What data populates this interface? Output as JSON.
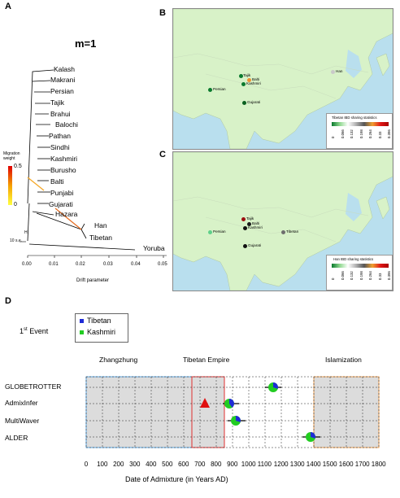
{
  "colors": {
    "tibetan": "#1f2bd6",
    "kashmiri": "#22cc22",
    "triangle": "#e01010",
    "panel_a_edge": "#f5a623",
    "map_land": "#d8f2c8",
    "map_sea": "#b9dfee",
    "box_blue": "#5aa7e6",
    "box_red": "#e03030",
    "box_orange": "#f0a050"
  },
  "panel_a": {
    "letter": "A",
    "title": "m=1",
    "leaves": [
      "Kalash",
      "Makrani",
      "Persian",
      "Tajik",
      "Brahui",
      "Balochi",
      "Pathan",
      "Sindhi",
      "Kashmiri",
      "Burusho",
      "Balti",
      "Punjabi",
      "Gujarati",
      "Hazara",
      "Han",
      "Tibetan",
      "Yoruba"
    ],
    "migration_label_1": "Migration",
    "migration_label_2": "weight",
    "migration_scale_top": "0.5",
    "migration_scale_bottom": "0",
    "se_label": "10 s.e.",
    "root_label": "H",
    "xticks": [
      "0.00",
      "0.01",
      "0.02",
      "0.03",
      "0.04",
      "0.05"
    ],
    "xlabel": "Drift parameter"
  },
  "panel_b": {
    "letter": "B",
    "labels": [
      "Tajik",
      "Balti",
      "Kashmiri",
      "Persian",
      "Gujarati",
      "Han"
    ],
    "legend_title": "Tibetan IBD sharing statistics",
    "legend_ticks": [
      "0",
      "0.066",
      "0.132",
      "0.198",
      "0.264",
      "0.33",
      "0.396"
    ]
  },
  "panel_c": {
    "letter": "C",
    "labels": [
      "Tajik",
      "Balti",
      "Kashmiri",
      "Persian",
      "Tibetan",
      "Gujarati"
    ],
    "legend_title": "Han IBD sharing statistics",
    "legend_ticks": [
      "0",
      "0.066",
      "0.132",
      "0.198",
      "0.264",
      "0.33",
      "0.396"
    ]
  },
  "panel_d": {
    "letter": "D",
    "event_prefix": "1",
    "event_sup": "st",
    "event_suffix": " Event",
    "legend": [
      "Tibetan",
      "Kashmiri"
    ],
    "eras": [
      "Zhangzhung",
      "Tibetan Empire",
      "Islamization"
    ],
    "methods": [
      "GLOBETROTTER",
      "AdmixInfer",
      "MultiWaver",
      "ALDER"
    ],
    "xticks": [
      "0",
      "100",
      "200",
      "300",
      "400",
      "500",
      "600",
      "700",
      "800",
      "900",
      "1000",
      "1100",
      "1200",
      "1300",
      "1400",
      "1500",
      "1600",
      "1700",
      "1800"
    ],
    "xlabel": "Date of Admixture (in Years AD)"
  },
  "chart_data": {
    "type": "scatter",
    "xlabel": "Date of Admixture (in Years AD)",
    "xlim": [
      0,
      1800
    ],
    "categories": [
      "GLOBETROTTER",
      "AdmixInfer",
      "MultiWaver",
      "ALDER"
    ],
    "series": [
      {
        "name": "GLOBETROTTER",
        "date": 1150,
        "error": [
          1100,
          1200
        ],
        "tibetan_fraction": 0.3
      },
      {
        "name": "AdmixInfer",
        "date": 880,
        "error": [
          840,
          940
        ],
        "tibetan_fraction": 0.4
      },
      {
        "name": "MultiWaver",
        "date": 920,
        "error": [
          870,
          980
        ],
        "tibetan_fraction": 0.3
      },
      {
        "name": "ALDER",
        "date": 1380,
        "error": [
          1330,
          1440
        ],
        "tibetan_fraction": 0.3
      }
    ],
    "triangle_marker": {
      "method": "AdmixInfer",
      "date": 730
    },
    "periods": [
      {
        "name": "Zhangzhung",
        "range": [
          0,
          650
        ]
      },
      {
        "name": "Tibetan Empire",
        "range": [
          650,
          850
        ]
      },
      {
        "name": "Islamization",
        "range": [
          1400,
          1800
        ]
      }
    ]
  }
}
